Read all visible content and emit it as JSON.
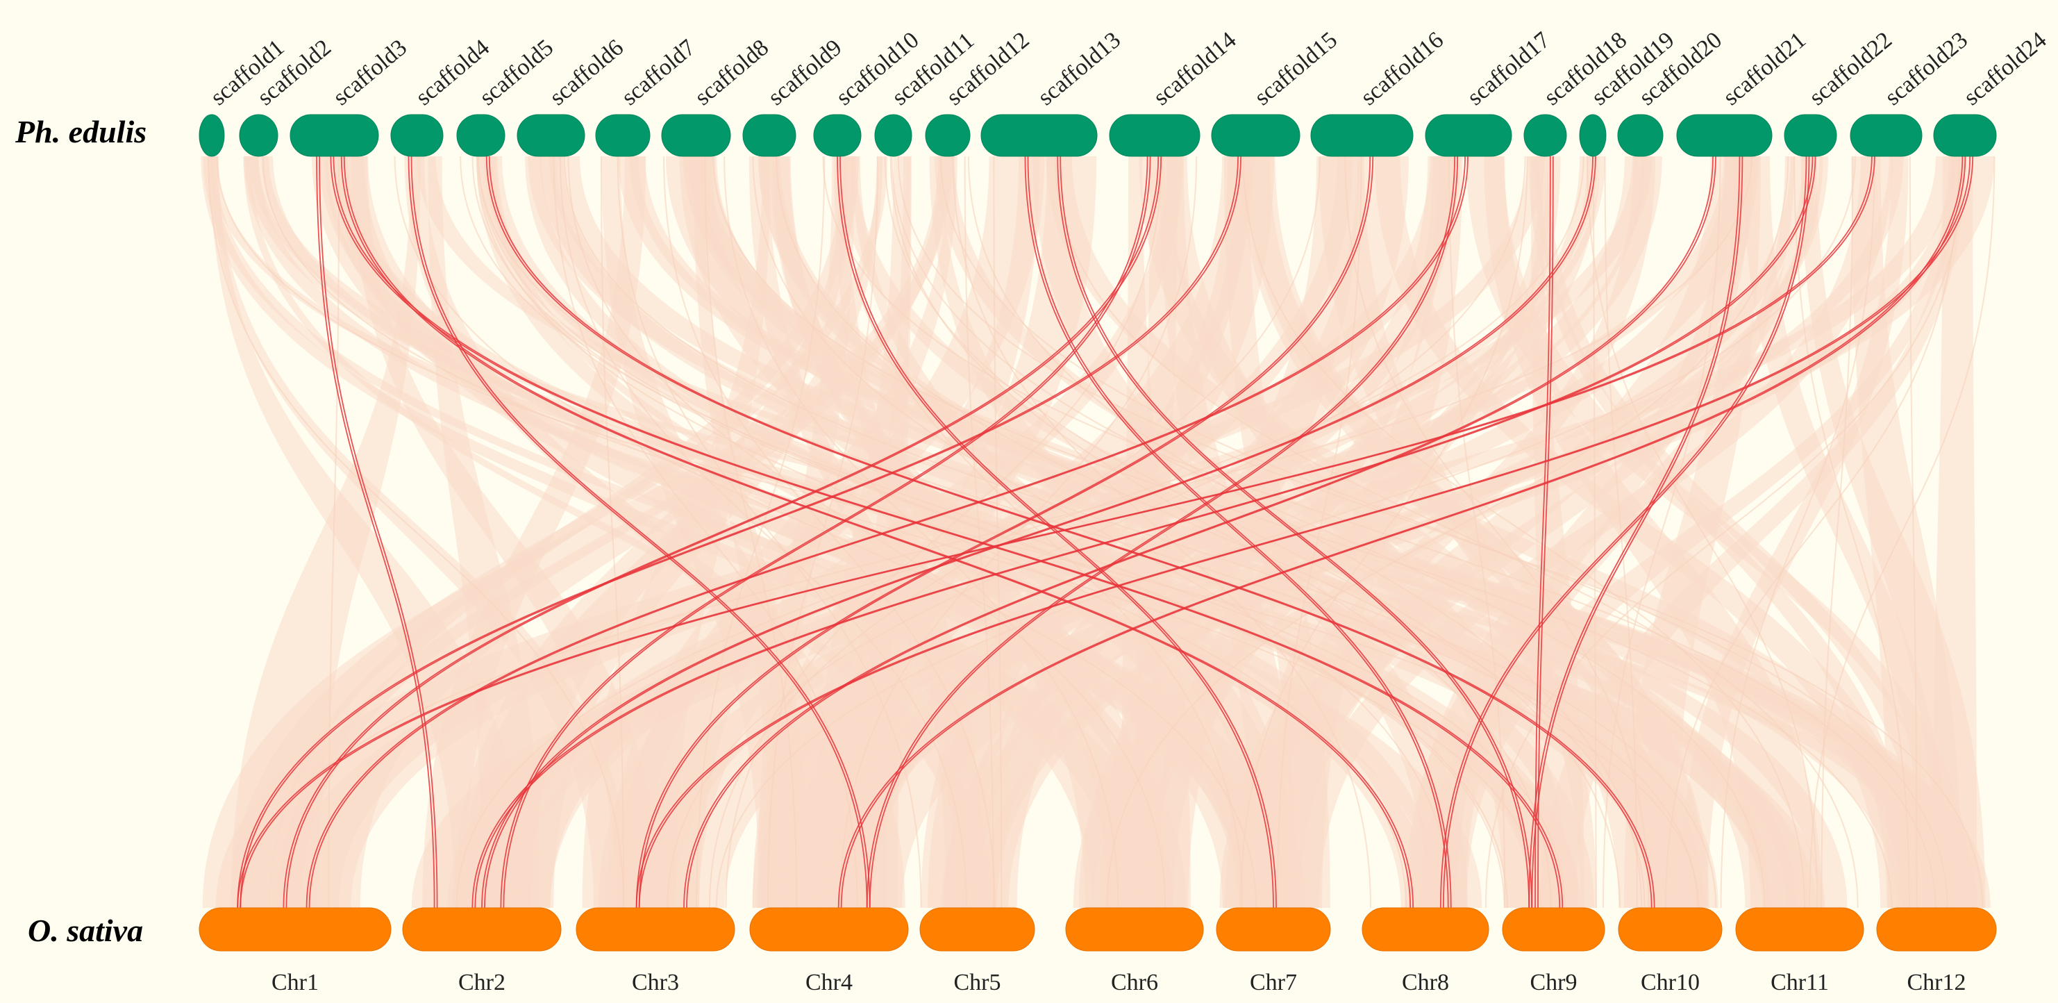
{
  "species": {
    "top": "Ph. edulis",
    "bottom": "O. sativa"
  },
  "colors": {
    "background": "#fefdf0",
    "top_track": "#03986a",
    "bottom_track": "#ff8000",
    "background_link": "#fadbc8",
    "highlight_link": "#e8343a"
  },
  "top_chromosomes": [
    "scaffold1",
    "scaffold2",
    "scaffold3",
    "scaffold4",
    "scaffold5",
    "scaffold6",
    "scaffold7",
    "scaffold8",
    "scaffold9",
    "scaffold10",
    "scaffold11",
    "scaffold12",
    "scaffold13",
    "scaffold14",
    "scaffold15",
    "scaffold16",
    "scaffold17",
    "scaffold18",
    "scaffold19",
    "scaffold20",
    "scaffold21",
    "scaffold22",
    "scaffold23",
    "scaffold24"
  ],
  "bottom_chromosomes": [
    "Chr1",
    "Chr2",
    "Chr3",
    "Chr4",
    "Chr5",
    "Chr6",
    "Chr7",
    "Chr8",
    "Chr9",
    "Chr10",
    "Chr11",
    "Chr12"
  ],
  "highlighted_links": [
    {
      "from": "scaffold3",
      "to": "Chr2"
    },
    {
      "from": "scaffold3",
      "to": "Chr8"
    },
    {
      "from": "scaffold3",
      "to": "Chr9"
    },
    {
      "from": "scaffold4",
      "to": "Chr4"
    },
    {
      "from": "scaffold5",
      "to": "Chr10"
    },
    {
      "from": "scaffold10",
      "to": "Chr7"
    },
    {
      "from": "scaffold13",
      "to": "Chr8"
    },
    {
      "from": "scaffold13",
      "to": "Chr9"
    },
    {
      "from": "scaffold14",
      "to": "Chr1"
    },
    {
      "from": "scaffold14",
      "to": "Chr2"
    },
    {
      "from": "scaffold15",
      "to": "Chr1"
    },
    {
      "from": "scaffold16",
      "to": "Chr3"
    },
    {
      "from": "scaffold17",
      "to": "Chr1"
    },
    {
      "from": "scaffold17",
      "to": "Chr4"
    },
    {
      "from": "scaffold18",
      "to": "Chr9"
    },
    {
      "from": "scaffold19",
      "to": "Chr2"
    },
    {
      "from": "scaffold21",
      "to": "Chr3"
    },
    {
      "from": "scaffold21",
      "to": "Chr9"
    },
    {
      "from": "scaffold22",
      "to": "Chr2"
    },
    {
      "from": "scaffold22",
      "to": "Chr8"
    },
    {
      "from": "scaffold23",
      "to": "Chr1"
    },
    {
      "from": "scaffold24",
      "to": "Chr3"
    },
    {
      "from": "scaffold24",
      "to": "Chr4"
    }
  ]
}
